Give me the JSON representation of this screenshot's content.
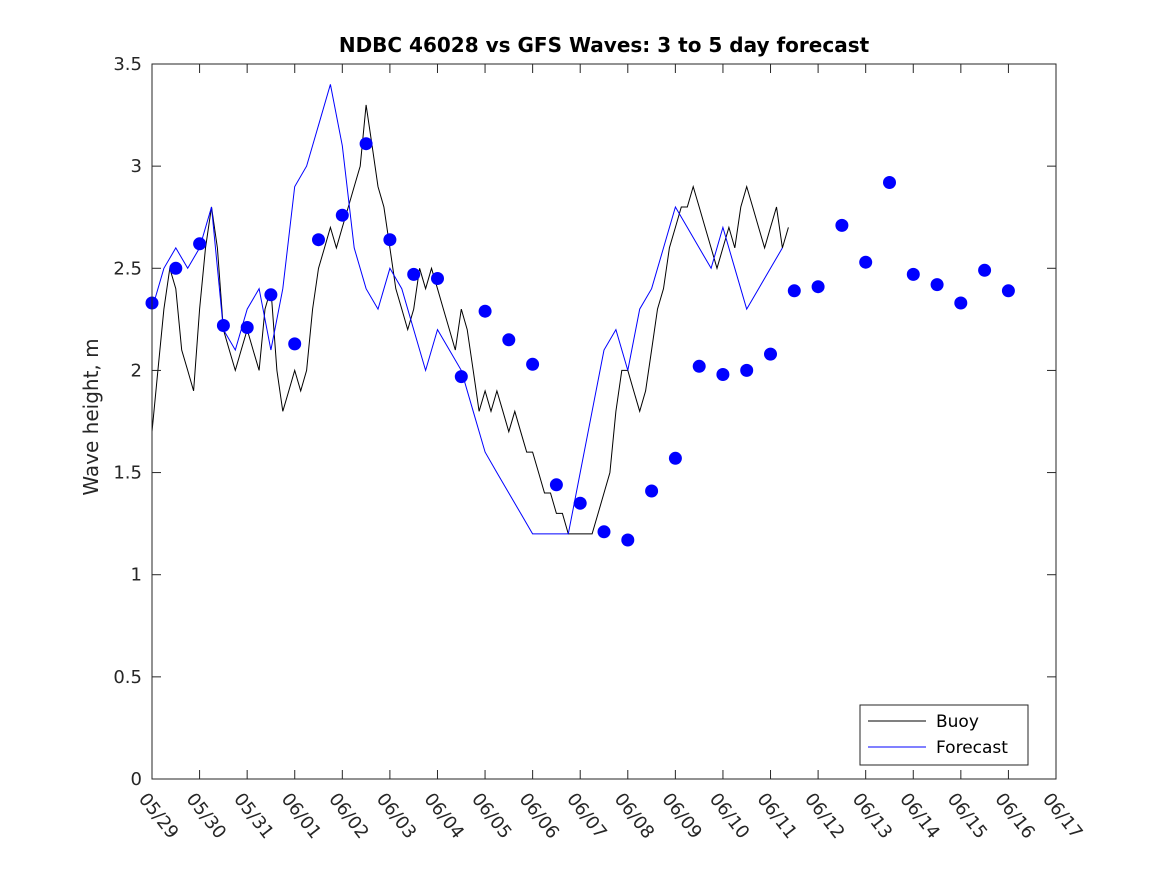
{
  "chart_data": {
    "type": "line",
    "title": "NDBC 46028 vs GFS Waves: 3 to 5 day forecast",
    "xlabel": "",
    "ylabel": "Wave height, m",
    "x_unit": "date (days, 05/29 to 06/17)",
    "xlim": [
      "05/29",
      "06/17"
    ],
    "ylim": [
      0,
      3.5
    ],
    "x_tick_labels": [
      "05/29",
      "05/30",
      "05/31",
      "06/01",
      "06/02",
      "06/03",
      "06/04",
      "06/05",
      "06/06",
      "06/07",
      "06/08",
      "06/09",
      "06/10",
      "06/11",
      "06/12",
      "06/13",
      "06/14",
      "06/15",
      "06/16",
      "06/17"
    ],
    "y_ticks": [
      0,
      0.5,
      1,
      1.5,
      2,
      2.5,
      3,
      3.5
    ],
    "y_tick_labels": [
      "0",
      "0.5",
      "1",
      "1.5",
      "2",
      "2.5",
      "3",
      "3.5"
    ],
    "grid": false,
    "legend": {
      "position": "bottom-right",
      "entries": [
        {
          "name": "Buoy",
          "color": "#000000"
        },
        {
          "name": "Forecast",
          "color": "#0000ff"
        }
      ]
    },
    "series": [
      {
        "name": "Buoy",
        "color": "#000000",
        "points": [
          [
            "05/29 00:00",
            1.7
          ],
          [
            "05/29 03:00",
            2.0
          ],
          [
            "05/29 06:00",
            2.3
          ],
          [
            "05/29 09:00",
            2.5
          ],
          [
            "05/29 12:00",
            2.4
          ],
          [
            "05/29 15:00",
            2.1
          ],
          [
            "05/29 18:00",
            2.0
          ],
          [
            "05/29 21:00",
            1.9
          ],
          [
            "05/30 00:00",
            2.3
          ],
          [
            "05/30 03:00",
            2.6
          ],
          [
            "05/30 06:00",
            2.8
          ],
          [
            "05/30 09:00",
            2.6
          ],
          [
            "05/30 12:00",
            2.2
          ],
          [
            "05/30 15:00",
            2.1
          ],
          [
            "05/30 18:00",
            2.0
          ],
          [
            "05/30 21:00",
            2.1
          ],
          [
            "05/31 00:00",
            2.2
          ],
          [
            "05/31 03:00",
            2.1
          ],
          [
            "05/31 06:00",
            2.0
          ],
          [
            "05/31 09:00",
            2.3
          ],
          [
            "05/31 12:00",
            2.4
          ],
          [
            "05/31 15:00",
            2.0
          ],
          [
            "05/31 18:00",
            1.8
          ],
          [
            "05/31 21:00",
            1.9
          ],
          [
            "06/01 00:00",
            2.0
          ],
          [
            "06/01 03:00",
            1.9
          ],
          [
            "06/01 06:00",
            2.0
          ],
          [
            "06/01 09:00",
            2.3
          ],
          [
            "06/01 12:00",
            2.5
          ],
          [
            "06/01 15:00",
            2.6
          ],
          [
            "06/01 18:00",
            2.7
          ],
          [
            "06/01 21:00",
            2.6
          ],
          [
            "06/02 00:00",
            2.7
          ],
          [
            "06/02 03:00",
            2.8
          ],
          [
            "06/02 06:00",
            2.9
          ],
          [
            "06/02 09:00",
            3.0
          ],
          [
            "06/02 12:00",
            3.3
          ],
          [
            "06/02 15:00",
            3.1
          ],
          [
            "06/02 18:00",
            2.9
          ],
          [
            "06/02 21:00",
            2.8
          ],
          [
            "06/03 00:00",
            2.6
          ],
          [
            "06/03 03:00",
            2.4
          ],
          [
            "06/03 06:00",
            2.3
          ],
          [
            "06/03 09:00",
            2.2
          ],
          [
            "06/03 12:00",
            2.3
          ],
          [
            "06/03 15:00",
            2.5
          ],
          [
            "06/03 18:00",
            2.4
          ],
          [
            "06/03 21:00",
            2.5
          ],
          [
            "06/04 00:00",
            2.4
          ],
          [
            "06/04 03:00",
            2.3
          ],
          [
            "06/04 06:00",
            2.2
          ],
          [
            "06/04 09:00",
            2.1
          ],
          [
            "06/04 12:00",
            2.3
          ],
          [
            "06/04 15:00",
            2.2
          ],
          [
            "06/04 18:00",
            2.0
          ],
          [
            "06/04 21:00",
            1.8
          ],
          [
            "06/05 00:00",
            1.9
          ],
          [
            "06/05 03:00",
            1.8
          ],
          [
            "06/05 06:00",
            1.9
          ],
          [
            "06/05 09:00",
            1.8
          ],
          [
            "06/05 12:00",
            1.7
          ],
          [
            "06/05 15:00",
            1.8
          ],
          [
            "06/05 18:00",
            1.7
          ],
          [
            "06/05 21:00",
            1.6
          ],
          [
            "06/06 00:00",
            1.6
          ],
          [
            "06/06 03:00",
            1.5
          ],
          [
            "06/06 06:00",
            1.4
          ],
          [
            "06/06 09:00",
            1.4
          ],
          [
            "06/06 12:00",
            1.3
          ],
          [
            "06/06 15:00",
            1.3
          ],
          [
            "06/06 18:00",
            1.2
          ],
          [
            "06/06 21:00",
            1.2
          ],
          [
            "06/07 00:00",
            1.2
          ],
          [
            "06/07 03:00",
            1.2
          ],
          [
            "06/07 06:00",
            1.2
          ],
          [
            "06/07 09:00",
            1.3
          ],
          [
            "06/07 12:00",
            1.4
          ],
          [
            "06/07 15:00",
            1.5
          ],
          [
            "06/07 18:00",
            1.8
          ],
          [
            "06/07 21:00",
            2.0
          ],
          [
            "06/08 00:00",
            2.0
          ],
          [
            "06/08 03:00",
            1.9
          ],
          [
            "06/08 06:00",
            1.8
          ],
          [
            "06/08 09:00",
            1.9
          ],
          [
            "06/08 12:00",
            2.1
          ],
          [
            "06/08 15:00",
            2.3
          ],
          [
            "06/08 18:00",
            2.4
          ],
          [
            "06/08 21:00",
            2.6
          ],
          [
            "06/09 00:00",
            2.7
          ],
          [
            "06/09 03:00",
            2.8
          ],
          [
            "06/09 06:00",
            2.8
          ],
          [
            "06/09 09:00",
            2.9
          ],
          [
            "06/09 12:00",
            2.8
          ],
          [
            "06/09 15:00",
            2.7
          ],
          [
            "06/09 18:00",
            2.6
          ],
          [
            "06/09 21:00",
            2.5
          ],
          [
            "06/10 00:00",
            2.6
          ],
          [
            "06/10 03:00",
            2.7
          ],
          [
            "06/10 06:00",
            2.6
          ],
          [
            "06/10 09:00",
            2.8
          ],
          [
            "06/10 12:00",
            2.9
          ],
          [
            "06/10 15:00",
            2.8
          ],
          [
            "06/10 18:00",
            2.7
          ],
          [
            "06/10 21:00",
            2.6
          ],
          [
            "06/11 00:00",
            2.7
          ],
          [
            "06/11 03:00",
            2.8
          ],
          [
            "06/11 06:00",
            2.6
          ],
          [
            "06/11 09:00",
            2.7
          ]
        ]
      },
      {
        "name": "Forecast",
        "color": "#0000ff",
        "points": [
          [
            "05/29 00:00",
            2.3
          ],
          [
            "05/29 06:00",
            2.5
          ],
          [
            "05/29 12:00",
            2.6
          ],
          [
            "05/29 18:00",
            2.5
          ],
          [
            "05/30 00:00",
            2.6
          ],
          [
            "05/30 06:00",
            2.8
          ],
          [
            "05/30 12:00",
            2.2
          ],
          [
            "05/30 18:00",
            2.1
          ],
          [
            "05/31 00:00",
            2.3
          ],
          [
            "05/31 06:00",
            2.4
          ],
          [
            "05/31 12:00",
            2.1
          ],
          [
            "05/31 18:00",
            2.4
          ],
          [
            "06/01 00:00",
            2.9
          ],
          [
            "06/01 06:00",
            3.0
          ],
          [
            "06/01 12:00",
            3.2
          ],
          [
            "06/01 18:00",
            3.4
          ],
          [
            "06/02 00:00",
            3.1
          ],
          [
            "06/02 06:00",
            2.6
          ],
          [
            "06/02 12:00",
            2.4
          ],
          [
            "06/02 18:00",
            2.3
          ],
          [
            "06/03 00:00",
            2.5
          ],
          [
            "06/03 06:00",
            2.4
          ],
          [
            "06/03 12:00",
            2.2
          ],
          [
            "06/03 18:00",
            2.0
          ],
          [
            "06/04 00:00",
            2.2
          ],
          [
            "06/04 06:00",
            2.1
          ],
          [
            "06/04 12:00",
            2.0
          ],
          [
            "06/04 18:00",
            1.8
          ],
          [
            "06/05 00:00",
            1.6
          ],
          [
            "06/05 06:00",
            1.5
          ],
          [
            "06/05 12:00",
            1.4
          ],
          [
            "06/05 18:00",
            1.3
          ],
          [
            "06/06 00:00",
            1.2
          ],
          [
            "06/06 06:00",
            1.2
          ],
          [
            "06/06 12:00",
            1.2
          ],
          [
            "06/06 18:00",
            1.2
          ],
          [
            "06/07 00:00",
            1.5
          ],
          [
            "06/07 06:00",
            1.8
          ],
          [
            "06/07 12:00",
            2.1
          ],
          [
            "06/07 18:00",
            2.2
          ],
          [
            "06/08 00:00",
            2.0
          ],
          [
            "06/08 06:00",
            2.3
          ],
          [
            "06/08 12:00",
            2.4
          ],
          [
            "06/08 18:00",
            2.6
          ],
          [
            "06/09 00:00",
            2.8
          ],
          [
            "06/09 06:00",
            2.7
          ],
          [
            "06/09 12:00",
            2.6
          ],
          [
            "06/09 18:00",
            2.5
          ],
          [
            "06/10 00:00",
            2.7
          ],
          [
            "06/10 06:00",
            2.5
          ],
          [
            "06/10 12:00",
            2.3
          ],
          [
            "06/10 18:00",
            2.4
          ],
          [
            "06/11 00:00",
            2.5
          ],
          [
            "06/11 06:00",
            2.6
          ]
        ]
      },
      {
        "name": "",
        "kind": "markers",
        "color": "#0000ff",
        "points": [
          [
            "05/29 00:00",
            2.33
          ],
          [
            "05/29 12:00",
            2.5
          ],
          [
            "05/30 00:00",
            2.62
          ],
          [
            "05/30 12:00",
            2.22
          ],
          [
            "05/31 00:00",
            2.21
          ],
          [
            "05/31 12:00",
            2.37
          ],
          [
            "06/01 00:00",
            2.13
          ],
          [
            "06/01 12:00",
            2.64
          ],
          [
            "06/02 00:00",
            2.76
          ],
          [
            "06/02 12:00",
            3.11
          ],
          [
            "06/03 00:00",
            2.64
          ],
          [
            "06/03 12:00",
            2.47
          ],
          [
            "06/04 00:00",
            2.45
          ],
          [
            "06/04 12:00",
            1.97
          ],
          [
            "06/05 00:00",
            2.29
          ],
          [
            "06/05 12:00",
            2.15
          ],
          [
            "06/06 00:00",
            2.03
          ],
          [
            "06/06 12:00",
            1.44
          ],
          [
            "06/07 00:00",
            1.35
          ],
          [
            "06/07 12:00",
            1.21
          ],
          [
            "06/08 00:00",
            1.17
          ],
          [
            "06/08 12:00",
            1.41
          ],
          [
            "06/09 00:00",
            1.57
          ],
          [
            "06/09 12:00",
            2.02
          ],
          [
            "06/10 00:00",
            1.98
          ],
          [
            "06/10 12:00",
            2.0
          ],
          [
            "06/11 00:00",
            2.08
          ],
          [
            "06/11 12:00",
            2.39
          ],
          [
            "06/12 00:00",
            2.41
          ],
          [
            "06/12 12:00",
            2.71
          ],
          [
            "06/13 00:00",
            2.53
          ],
          [
            "06/13 12:00",
            2.92
          ],
          [
            "06/14 00:00",
            2.47
          ],
          [
            "06/14 12:00",
            2.42
          ],
          [
            "06/15 00:00",
            2.33
          ],
          [
            "06/15 12:00",
            2.49
          ],
          [
            "06/16 00:00",
            2.39
          ]
        ]
      }
    ]
  }
}
